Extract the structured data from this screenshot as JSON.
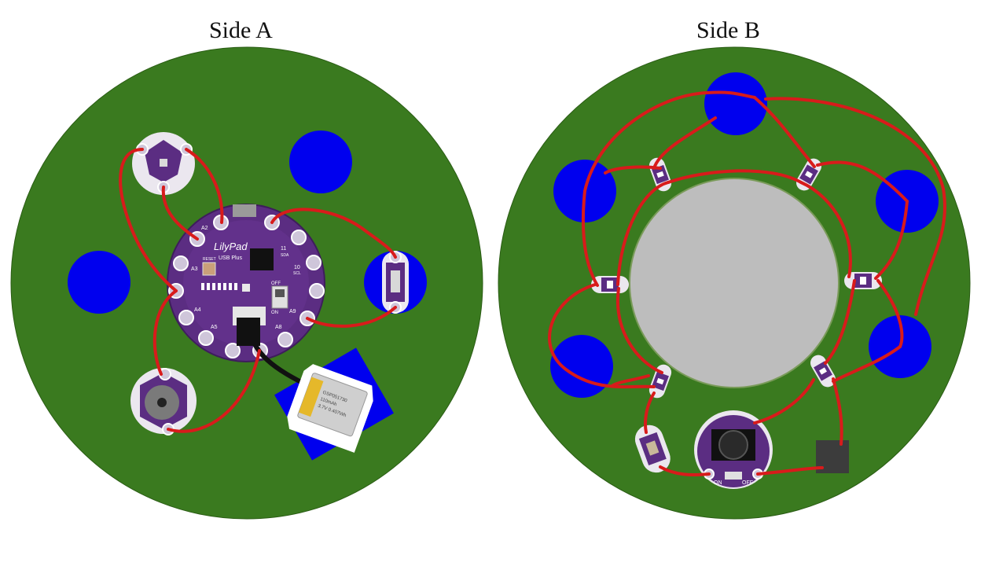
{
  "titles": {
    "side_a": "Side A",
    "side_b": "Side B"
  },
  "colors": {
    "board": "#3a7a1f",
    "pad": "#0000ee",
    "wire": "#d81b1b",
    "module": "#5b2d82",
    "battery_pocket": "#bdbdbd"
  },
  "lilypad": {
    "logo": "LilyPad",
    "sub": "USB Plus",
    "reset": "RESET",
    "pins": {
      "a2": "A2",
      "a3": "A3",
      "a4": "A4",
      "a5": "A5",
      "a8": "A8",
      "a9": "A9",
      "p10": "10",
      "p11": "11",
      "sda": "SDA",
      "scl": "SCL"
    },
    "switch": {
      "off": "OFF",
      "on": "ON"
    }
  },
  "battery": {
    "model": "GSP051730",
    "rating": "3.7V 0.407Wh",
    "capacity": "110mAh"
  },
  "coin_holder": {
    "on": "ON",
    "off": "OFF"
  }
}
